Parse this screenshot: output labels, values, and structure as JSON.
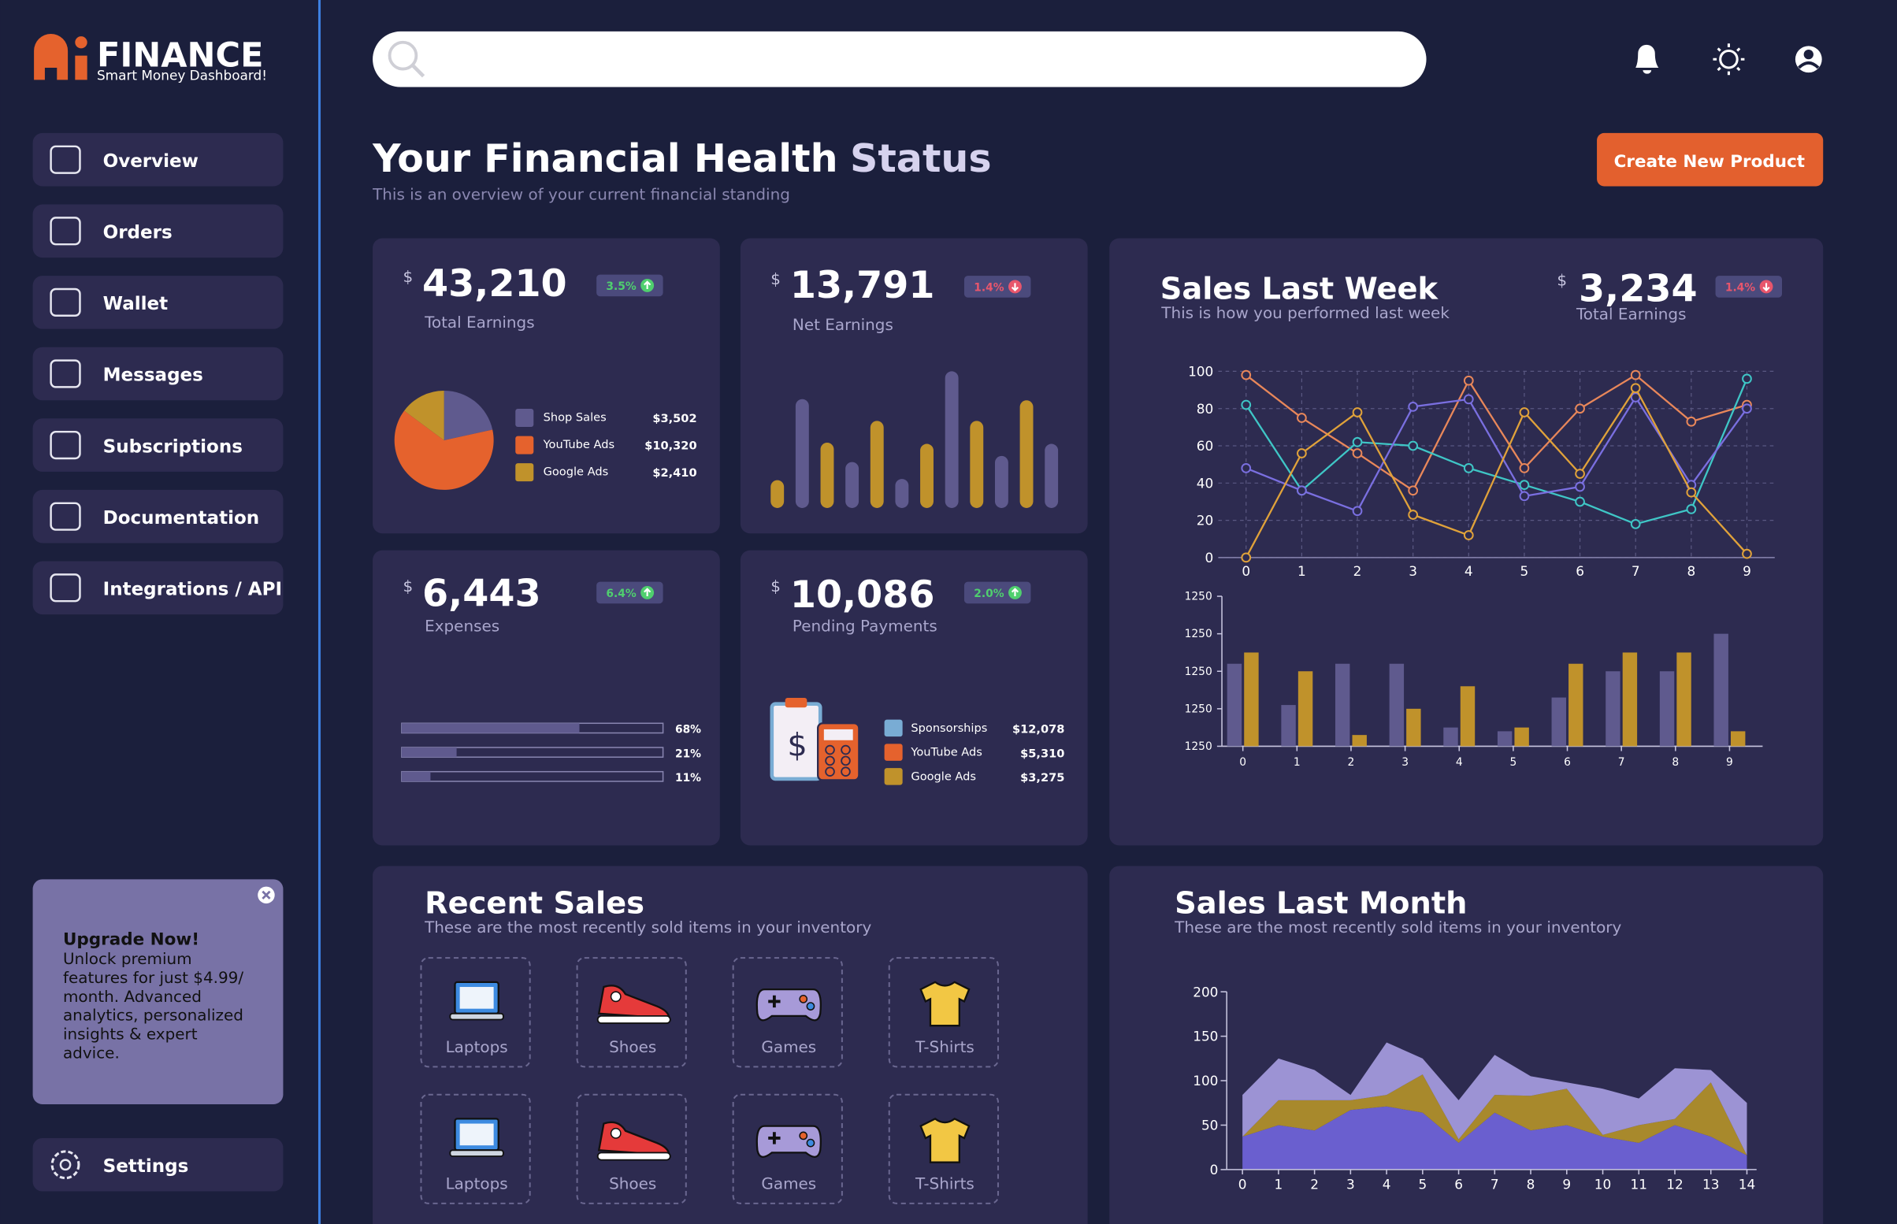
{
  "sidebar": {
    "logo": "FINANCE",
    "tagline": "Smart Money Dashboard!",
    "menu": [
      "Overview",
      "Orders",
      "Wallet",
      "Messages",
      "Subscriptions",
      "Documentation",
      "Integrations / API"
    ],
    "upgrade": {
      "title": "Upgrade Now!",
      "lines": [
        "Unlock premium",
        "features for just $4.99/",
        "month. Advanced",
        "analytics, personalized",
        "insights & expert",
        "advice."
      ]
    },
    "settings": "Settings"
  },
  "header": {
    "title": "Your Financial Health",
    "title_accent": "Status",
    "subtitle": "This is an overview of your current financial standing",
    "button": "Create New Product"
  },
  "cards": {
    "total_earnings": {
      "currency": "$",
      "value": "43,210",
      "label": "Total Earnings",
      "badge": "3.5%",
      "trend": "up",
      "chart": {
        "type": "pie",
        "categories": [
          "Shop Sales",
          "YouTube Ads",
          "Google Ads"
        ],
        "values": [
          3502,
          10320,
          2410
        ],
        "value_labels": [
          "$3,502",
          "$10,320",
          "$2,410"
        ],
        "colors": [
          "#5f5a8e",
          "#e5622d",
          "#c0922b"
        ]
      }
    },
    "net_earnings": {
      "currency": "$",
      "value": "13,791",
      "label": "Net Earnings",
      "badge": "1.4%",
      "trend": "down",
      "chart": {
        "type": "bar",
        "values": [
          23,
          90,
          54,
          38,
          72,
          24,
          53,
          113,
          72,
          43,
          89,
          53
        ],
        "colors": [
          "#c0922b",
          "#5f5a8e",
          "#c0922b",
          "#5f5a8e",
          "#c0922b",
          "#5f5a8e",
          "#c0922b",
          "#5f5a8e",
          "#c0922b",
          "#5f5a8e",
          "#c0922b",
          "#5f5a8e"
        ]
      }
    },
    "expenses": {
      "currency": "$",
      "value": "6,443",
      "label": "Expenses",
      "badge": "6.4%",
      "trend": "up",
      "chart": {
        "type": "progress",
        "values": [
          68,
          21,
          11
        ],
        "value_labels": [
          "68%",
          "21%",
          "11%"
        ],
        "color": "#5f5a8e"
      }
    },
    "pending_payments": {
      "currency": "$",
      "value": "10,086",
      "label": "Pending Payments",
      "badge": "2.0%",
      "trend": "up",
      "items": [
        {
          "name": "Sponsorships",
          "color": "#79acd4",
          "value": "$12,078"
        },
        {
          "name": "YouTube Ads",
          "color": "#e5622d",
          "value": "$5,310"
        },
        {
          "name": "Google Ads",
          "color": "#c0922b",
          "value": "$3,275"
        }
      ]
    }
  },
  "sales_last_week": {
    "title": "Sales Last Week",
    "subtitle": "This is how you performed last week",
    "currency": "$",
    "value": "3,234",
    "label": "Total Earnings",
    "badge": "1.4%",
    "trend": "down",
    "line_chart": {
      "type": "line",
      "x": [
        0,
        1,
        2,
        3,
        4,
        5,
        6,
        7,
        8,
        9
      ],
      "xlim": [
        -0.5,
        9.5
      ],
      "ylim": [
        0,
        100
      ],
      "yticks": [
        0,
        20,
        40,
        60,
        80,
        100
      ],
      "grid": true,
      "series": [
        {
          "color": "#e8875a",
          "values": [
            98,
            75,
            56,
            36,
            95,
            48,
            80,
            98,
            73,
            82
          ]
        },
        {
          "color": "#3fc6c6",
          "values": [
            82,
            36,
            62,
            60,
            48,
            39,
            30,
            18,
            26,
            96
          ]
        },
        {
          "color": "#7a6fe0",
          "values": [
            48,
            36,
            25,
            81,
            85,
            33,
            38,
            86,
            39,
            80
          ]
        },
        {
          "color": "#e0a23a",
          "values": [
            0,
            56,
            78,
            23,
            12,
            78,
            45,
            91,
            35,
            2
          ]
        }
      ]
    },
    "bar_chart": {
      "type": "bar",
      "categories": [
        "0",
        "1",
        "2",
        "3",
        "4",
        "5",
        "6",
        "7",
        "8",
        "9"
      ],
      "ylim": [
        0,
        4
      ],
      "yticks": [
        {
          "value": 0,
          "label": "1250"
        },
        {
          "value": 1,
          "label": "1250"
        },
        {
          "value": 2,
          "label": "1250"
        },
        {
          "value": 3,
          "label": "1250"
        },
        {
          "value": 4,
          "label": "1250"
        }
      ],
      "series": [
        {
          "color": "#5f5a8e",
          "values": [
            2.2,
            1.1,
            2.2,
            2.2,
            0.5,
            0.4,
            1.3,
            2.0,
            2.0,
            3.0
          ]
        },
        {
          "color": "#c0922b",
          "values": [
            2.5,
            2.0,
            0.3,
            1.0,
            1.6,
            0.5,
            2.2,
            2.5,
            2.5,
            0.4
          ]
        }
      ]
    }
  },
  "recent_sales": {
    "title": "Recent Sales",
    "subtitle": "These are the most recently sold items in your inventory",
    "items": [
      [
        "Laptops",
        "Shoes",
        "Games",
        "T-Shirts"
      ],
      [
        "Laptops",
        "Shoes",
        "Games",
        "T-Shirts"
      ]
    ]
  },
  "sales_last_month": {
    "title": "Sales Last Month",
    "subtitle": "These are the most recently sold items in your inventory",
    "chart": {
      "type": "area",
      "stacked": true,
      "x": [
        0,
        1,
        2,
        3,
        4,
        5,
        6,
        7,
        8,
        9,
        10,
        11,
        12,
        13,
        14
      ],
      "xlim": [
        0,
        14
      ],
      "ylim": [
        0,
        200
      ],
      "yticks": [
        0,
        50,
        100,
        150,
        200
      ],
      "series": [
        {
          "color": "#6a5fcf",
          "values": [
            37,
            50,
            44,
            67,
            71,
            64,
            30,
            64,
            44,
            50,
            37,
            30,
            50,
            37,
            16
          ]
        },
        {
          "color": "#a8892c",
          "values": [
            0,
            28,
            34,
            11,
            13,
            43,
            4,
            20,
            39,
            41,
            2,
            20,
            7,
            61,
            0
          ]
        },
        {
          "color": "#9c93d4",
          "values": [
            47,
            47,
            34,
            6,
            59,
            18,
            44,
            45,
            22,
            7,
            52,
            30,
            57,
            14,
            59
          ]
        }
      ]
    }
  }
}
